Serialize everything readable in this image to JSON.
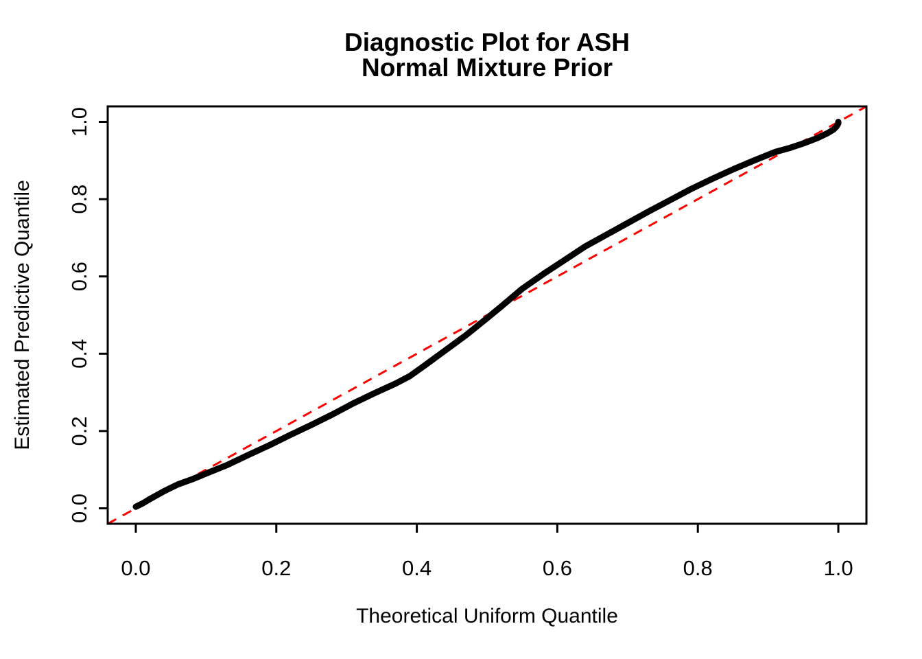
{
  "figure": {
    "background": "#FFFFFF",
    "title_line1": "Diagnostic Plot for ASH",
    "title_line2": "Normal Mixture Prior",
    "text_color": "#000000"
  },
  "chart_data": {
    "type": "line",
    "title": "Diagnostic Plot for ASH Normal Mixture Prior",
    "xlabel": "Theoretical Uniform Quantile",
    "ylabel": "Estimated Predictive Quantile",
    "xlim": [
      -0.04,
      1.04
    ],
    "ylim": [
      -0.04,
      1.04
    ],
    "x_ticks": [
      0.0,
      0.2,
      0.4,
      0.6,
      0.8,
      1.0
    ],
    "y_ticks": [
      0.0,
      0.2,
      0.4,
      0.6,
      0.8,
      1.0
    ],
    "x_tick_labels": [
      "0.0",
      "0.2",
      "0.4",
      "0.6",
      "0.8",
      "1.0"
    ],
    "y_tick_labels": [
      "0.0",
      "0.2",
      "0.4",
      "0.6",
      "0.8",
      "1.0"
    ],
    "grid": false,
    "legend": "none",
    "series": [
      {
        "name": "estimated-vs-theoretical-quantile-curve",
        "color": "#000000",
        "style": "solid",
        "line_width": 9,
        "x": [
          0.0,
          0.01,
          0.02,
          0.04,
          0.06,
          0.08,
          0.1,
          0.13,
          0.16,
          0.19,
          0.22,
          0.25,
          0.28,
          0.31,
          0.34,
          0.37,
          0.39,
          0.41,
          0.44,
          0.47,
          0.5,
          0.52,
          0.55,
          0.58,
          0.61,
          0.64,
          0.67,
          0.7,
          0.73,
          0.76,
          0.79,
          0.82,
          0.85,
          0.88,
          0.91,
          0.93,
          0.95,
          0.97,
          0.985,
          0.993,
          0.997,
          1.0,
          1.0
        ],
        "y": [
          0.004,
          0.013,
          0.024,
          0.044,
          0.062,
          0.075,
          0.09,
          0.112,
          0.138,
          0.163,
          0.19,
          0.216,
          0.243,
          0.272,
          0.298,
          0.323,
          0.342,
          0.368,
          0.408,
          0.448,
          0.492,
          0.522,
          0.568,
          0.606,
          0.642,
          0.678,
          0.708,
          0.738,
          0.768,
          0.797,
          0.826,
          0.852,
          0.877,
          0.9,
          0.922,
          0.932,
          0.944,
          0.958,
          0.971,
          0.98,
          0.987,
          0.996,
          1.0
        ]
      },
      {
        "name": "identity-reference-line",
        "color": "#FF0000",
        "style": "dashed",
        "line_width": 3,
        "x": [
          -0.04,
          1.04
        ],
        "y": [
          -0.04,
          1.04
        ]
      }
    ]
  }
}
